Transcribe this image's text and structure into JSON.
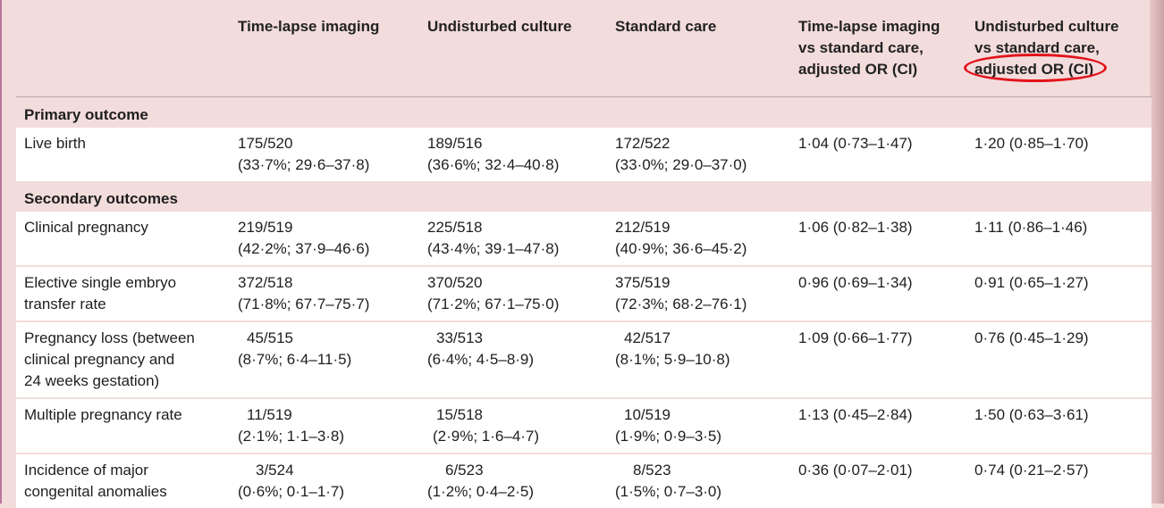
{
  "columns": [
    "",
    "Time-lapse imaging",
    "Undisturbed culture",
    "Standard care",
    [
      "Time-lapse imaging",
      "vs standard care,",
      "adjusted OR (CI)"
    ],
    [
      "Undisturbed culture",
      "vs standard care,",
      "adjusted OR (CI)"
    ]
  ],
  "sections": [
    {
      "title": "Primary outcome",
      "rows": [
        {
          "label": [
            "Live birth"
          ],
          "tl": [
            "175/520",
            "(33·7%; 29·6–37·8)"
          ],
          "uc": [
            "189/516",
            "(36·6%; 32·4–40·8)"
          ],
          "sc": [
            "172/522",
            "(33·0%; 29·0–37·0)"
          ],
          "or_tl": "1·04 (0·73–1·47)",
          "or_uc": "1·20 (0·85–1·70)"
        }
      ]
    },
    {
      "title": "Secondary outcomes",
      "rows": [
        {
          "label": [
            "Clinical pregnancy"
          ],
          "tl": [
            "219/519",
            "(42·2%; 37·9–46·6)"
          ],
          "uc": [
            "225/518",
            "(43·4%; 39·1–47·8)"
          ],
          "sc": [
            "212/519",
            "(40·9%; 36·6–45·2)"
          ],
          "or_tl": "1·06 (0·82–1·38)",
          "or_uc": "1·11 (0·86–1·46)"
        },
        {
          "label": [
            "Elective single embryo",
            "transfer rate"
          ],
          "tl": [
            "372/518",
            "(71·8%; 67·7–75·7)"
          ],
          "uc": [
            "370/520",
            "(71·2%; 67·1–75·0)"
          ],
          "sc": [
            "375/519",
            "(72·3%; 68·2–76·1)"
          ],
          "or_tl": "0·96 (0·69–1·34)",
          "or_uc": "0·91 (0·65–1·27)"
        },
        {
          "label": [
            "Pregnancy loss (between",
            "clinical pregnancy and",
            "24 weeks gestation)"
          ],
          "tl": [
            "45/515",
            "(8·7%; 6·4–11·5)"
          ],
          "uc": [
            "33/513",
            "(6·4%; 4·5–8·9)"
          ],
          "sc": [
            "42/517",
            "(8·1%; 5·9–10·8)"
          ],
          "or_tl": "1·09 (0·66–1·77)",
          "or_uc": "0·76 (0·45–1·29)"
        },
        {
          "label": [
            "Multiple pregnancy rate"
          ],
          "tl": [
            "11/519",
            "(2·1%; 1·1–3·8)"
          ],
          "uc": [
            "15/518",
            "(2·9%; 1·6–4·7)"
          ],
          "sc": [
            "10/519",
            "(1·9%; 0·9–3·5)"
          ],
          "or_tl": "1·13 (0·45–2·84)",
          "or_uc": "1·50 (0·63–3·61)"
        },
        {
          "label": [
            "Incidence of major",
            "congenital anomalies"
          ],
          "tl": [
            "3/524",
            "(0·6%; 0·1–1·7)"
          ],
          "uc": [
            "6/523",
            "(1·2%; 0·4–2·5)"
          ],
          "sc": [
            "8/523",
            "(1·5%; 0·7–3·0)"
          ],
          "or_tl": "0·36 (0·07–2·01)",
          "or_uc": "0·74 (0·21–2·57)"
        }
      ]
    }
  ],
  "annotation": {
    "highlighted_text": "adjusted OR (CI)",
    "color": "#e2131b"
  }
}
